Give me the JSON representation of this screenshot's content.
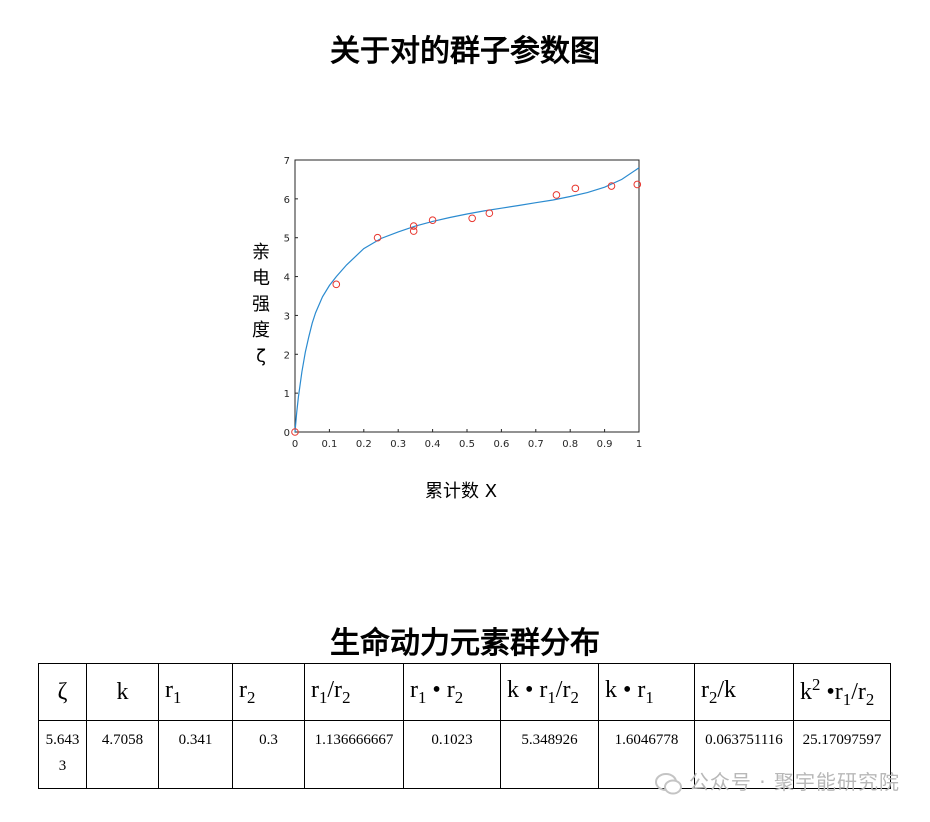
{
  "page": {
    "title": "关于对的群子参数图"
  },
  "chart_data": {
    "type": "scatter",
    "title": "",
    "xlabel": "累计数 X",
    "ylabel": "亲电强度 ζ",
    "xlim": [
      0,
      1
    ],
    "ylim": [
      0,
      7
    ],
    "xticks": [
      "0",
      "0.1",
      "0.2",
      "0.3",
      "0.4",
      "0.5",
      "0.6",
      "0.7",
      "0.8",
      "0.9",
      "1"
    ],
    "yticks": [
      "0",
      "1",
      "2",
      "3",
      "4",
      "5",
      "6",
      "7"
    ],
    "grid": false,
    "points": {
      "name": "",
      "color": "#e8372f",
      "x": [
        0,
        0.12,
        0.24,
        0.345,
        0.345,
        0.4,
        0.515,
        0.565,
        0.76,
        0.815,
        0.92,
        0.995
      ],
      "y": [
        0,
        3.8,
        5.0,
        5.3,
        5.17,
        5.45,
        5.5,
        5.63,
        6.1,
        6.27,
        6.33,
        6.37
      ]
    },
    "fit_line": {
      "name": "",
      "color": "#2b8bd0",
      "x": [
        0,
        0.005,
        0.01,
        0.02,
        0.03,
        0.04,
        0.05,
        0.06,
        0.08,
        0.1,
        0.12,
        0.15,
        0.2,
        0.25,
        0.3,
        0.35,
        0.4,
        0.45,
        0.5,
        0.55,
        0.6,
        0.65,
        0.7,
        0.75,
        0.8,
        0.85,
        0.9,
        0.95,
        1.0
      ],
      "y": [
        0,
        0.5,
        0.9,
        1.55,
        2.05,
        2.45,
        2.8,
        3.07,
        3.48,
        3.77,
        4.0,
        4.3,
        4.72,
        4.98,
        5.15,
        5.3,
        5.42,
        5.52,
        5.61,
        5.69,
        5.76,
        5.83,
        5.9,
        5.97,
        6.06,
        6.16,
        6.3,
        6.5,
        6.8
      ]
    }
  },
  "table": {
    "title": "生命动力元素群分布",
    "headers": [
      {
        "main": "ζ",
        "sub": "",
        "sup": "",
        "rest": ""
      },
      {
        "main": "k",
        "sub": "",
        "sup": "",
        "rest": ""
      },
      {
        "main": "r",
        "sub": "1",
        "sup": "",
        "rest": ""
      },
      {
        "main": "r",
        "sub": "2",
        "sup": "",
        "rest": ""
      },
      {
        "main": "r",
        "sub": "1",
        "sup": "",
        "rest": "/r",
        "sub2": "2"
      },
      {
        "main": "r",
        "sub": "1",
        "sup": "",
        "rest": " • r",
        "sub2": "2"
      },
      {
        "main": "k • r",
        "sub": "1",
        "sup": "",
        "rest": "/r",
        "sub2": "2"
      },
      {
        "main": "k • r",
        "sub": "1",
        "sup": "",
        "rest": ""
      },
      {
        "main": "r",
        "sub": "2",
        "sup": "",
        "rest": "/k"
      },
      {
        "main": "k",
        "sub": "",
        "sup": "2",
        "rest": " •r",
        "sub2": "1",
        "rest2": "/r",
        "sub3": "2"
      }
    ],
    "values": [
      "5.6433",
      "4.7058",
      "0.341",
      "0.3",
      "1.136666667",
      "0.1023",
      "5.348926",
      "1.6046778",
      "0.063751116",
      "25.17097597"
    ]
  },
  "watermark": {
    "text": "公众号 · 聚宇能研究院"
  }
}
